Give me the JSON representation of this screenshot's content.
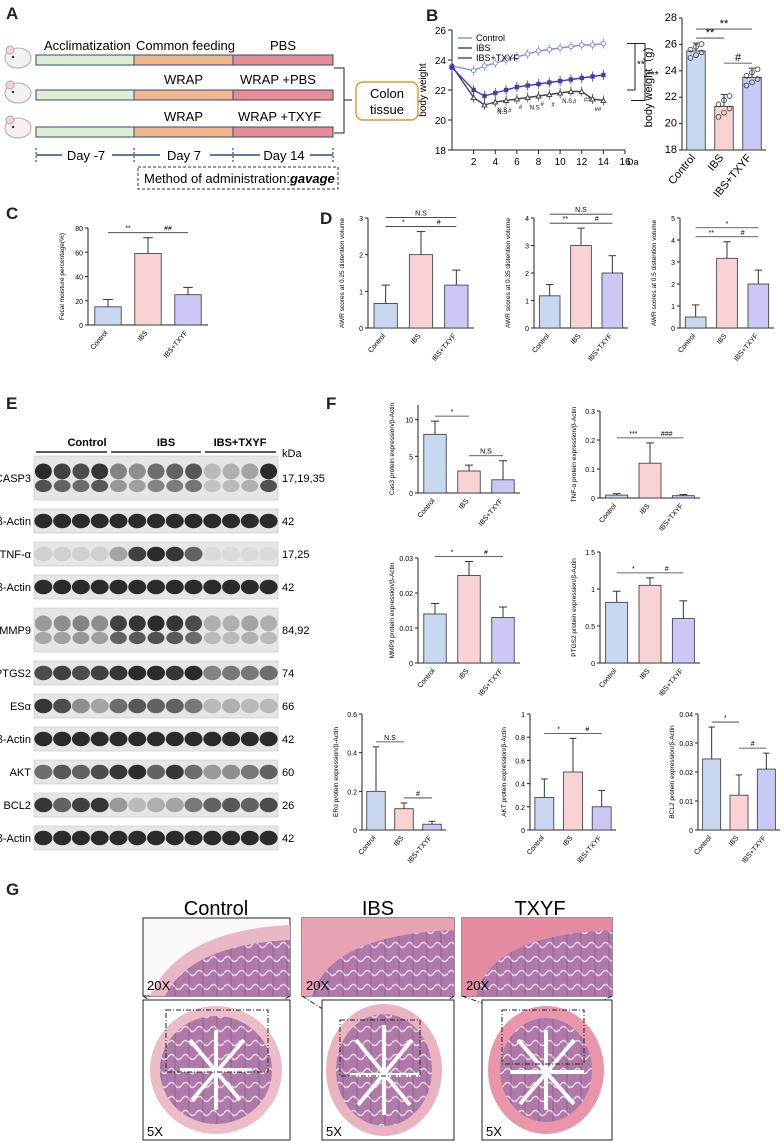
{
  "panels": [
    "A",
    "B",
    "C",
    "D",
    "E",
    "F",
    "G"
  ],
  "panelA": {
    "rows": [
      {
        "s1": "Acclimatization",
        "s2": "Common feeding",
        "s3": "PBS"
      },
      {
        "s1": "",
        "s2": "WRAP",
        "s3": "WRAP +PBS"
      },
      {
        "s1": "",
        "s2": "WRAP",
        "s3": "WRAP +TXYF"
      }
    ],
    "days": [
      "Day -7",
      "Day 7",
      "Day 14"
    ],
    "target": "Colon tissue",
    "method_prefix": "Method of administration:",
    "method_value": "gavage",
    "colors": {
      "s1": "#dfeed1",
      "s2": "#f1b889",
      "s3": "#e98d95",
      "border": "#2d4a8a"
    }
  },
  "chart_data": [
    {
      "id": "B-line",
      "type": "line",
      "ylabel": "body weight",
      "ylim": [
        18,
        26
      ],
      "yticks": [
        18,
        20,
        22,
        24,
        26
      ],
      "xticks": [
        2,
        4,
        6,
        8,
        10,
        12,
        14,
        16
      ],
      "xunit": "Day",
      "legend_position": "top-left",
      "x": [
        0,
        2,
        3,
        4,
        5,
        6,
        7,
        8,
        9,
        10,
        11,
        12,
        13,
        14
      ],
      "series": [
        {
          "name": "Control",
          "values": [
            23.6,
            23.3,
            23.6,
            23.8,
            24.0,
            24.2,
            24.4,
            24.6,
            24.7,
            24.8,
            24.9,
            25.0,
            25.0,
            25.1
          ],
          "color": "#7b93d6"
        },
        {
          "name": "IBS",
          "values": [
            23.6,
            21.5,
            21.0,
            21.2,
            21.3,
            21.4,
            21.5,
            21.6,
            21.7,
            21.8,
            21.9,
            21.9,
            21.4,
            21.3
          ],
          "color": "#444444"
        },
        {
          "name": "IBS+TXYF",
          "values": [
            23.5,
            22.0,
            21.6,
            21.8,
            22.0,
            22.2,
            22.3,
            22.4,
            22.5,
            22.6,
            22.7,
            22.8,
            22.9,
            23.0
          ],
          "color": "#3d3db5"
        }
      ],
      "annotations": [
        "**",
        "***",
        "N.S",
        "N.S",
        "#",
        "#",
        "N.S",
        "#",
        "#",
        "N.S",
        "#",
        "##",
        "##"
      ]
    },
    {
      "id": "B-bar",
      "type": "bar",
      "ylabel": "body weight（g）",
      "ylim": [
        18,
        28
      ],
      "yticks": [
        18,
        20,
        22,
        24,
        26,
        28
      ],
      "categories": [
        "Control",
        "IBS",
        "IBS+TXYF"
      ],
      "values": [
        25.5,
        21.3,
        23.5
      ],
      "errors": [
        0.6,
        0.9,
        0.7
      ],
      "sig": [
        "**",
        "**",
        "#"
      ]
    },
    {
      "id": "C",
      "type": "bar",
      "ylabel": "Fecal moisture percentage(%)",
      "ylim": [
        0,
        80
      ],
      "yticks": [
        0,
        20,
        40,
        60,
        80
      ],
      "categories": [
        "Control",
        "IBS",
        "IBS+TXYF"
      ],
      "values": [
        15,
        59,
        25
      ],
      "errors": [
        6,
        13,
        6
      ],
      "sig": [
        "**",
        "##"
      ]
    },
    {
      "id": "D1",
      "type": "bar",
      "ylabel": "AWR scores at 0.25 distention volume",
      "ylim": [
        0,
        3
      ],
      "yticks": [
        0,
        1,
        2,
        3
      ],
      "categories": [
        "Control",
        "IBS",
        "IBS+TXYF"
      ],
      "values": [
        0.67,
        2.0,
        1.17
      ],
      "errors": [
        0.5,
        0.63,
        0.41
      ],
      "sig": [
        "N.S",
        "*",
        "#"
      ]
    },
    {
      "id": "D2",
      "type": "bar",
      "ylabel": "AWR scores at 0.35 distention volume",
      "ylim": [
        0,
        4
      ],
      "yticks": [
        0,
        1,
        2,
        3,
        4
      ],
      "categories": [
        "Control",
        "IBS",
        "IBS+TXYF"
      ],
      "values": [
        1.17,
        3.0,
        2.0
      ],
      "errors": [
        0.41,
        0.63,
        0.63
      ],
      "sig": [
        "N.S",
        "**",
        "#"
      ]
    },
    {
      "id": "D3",
      "type": "bar",
      "ylabel": "AWR scores at 0.5 distention volume",
      "ylim": [
        0,
        5
      ],
      "yticks": [
        0,
        1,
        2,
        3,
        4,
        5
      ],
      "categories": [
        "Control",
        "IBS",
        "IBS+TXYF"
      ],
      "values": [
        0.5,
        3.17,
        2.0
      ],
      "errors": [
        0.55,
        0.75,
        0.63
      ],
      "sig": [
        "*",
        "**",
        "#"
      ]
    },
    {
      "id": "F1",
      "type": "bar",
      "ylabel": "Cas3 protein expression/β-Actin",
      "ylim": [
        0,
        12
      ],
      "yticks": [
        0,
        5,
        10
      ],
      "categories": [
        "Control",
        "IBS",
        "IBS+TXYF"
      ],
      "values": [
        8,
        3,
        1.8
      ],
      "errors": [
        1.8,
        0.8,
        2.6
      ],
      "sig": [
        "*",
        "N.S"
      ]
    },
    {
      "id": "F2",
      "type": "bar",
      "ylabel": "TNF-α protein expression/β-Actin",
      "ylim": [
        0,
        0.3
      ],
      "yticks": [
        0,
        0.1,
        0.2,
        0.3
      ],
      "categories": [
        "Control",
        "IBS",
        "IBS+TXYF"
      ],
      "values": [
        0.01,
        0.12,
        0.008
      ],
      "errors": [
        0.005,
        0.07,
        0.004
      ],
      "sig": [
        "***",
        "###"
      ]
    },
    {
      "id": "F3",
      "type": "bar",
      "ylabel": "MMP9 protein expression/β-Actin",
      "ylim": [
        0,
        0.03
      ],
      "yticks": [
        0,
        0.01,
        0.02,
        0.03
      ],
      "categories": [
        "Control",
        "IBS",
        "IBS+TXYF"
      ],
      "values": [
        0.014,
        0.025,
        0.013
      ],
      "errors": [
        0.003,
        0.004,
        0.003
      ],
      "sig": [
        "*",
        "#"
      ]
    },
    {
      "id": "F4",
      "type": "bar",
      "ylabel": "PTGS2 protein expression/β-Actin",
      "ylim": [
        0,
        1.5
      ],
      "yticks": [
        0,
        0.5,
        1,
        1.5
      ],
      "categories": [
        "Control",
        "IBS",
        "IBS+TXYF"
      ],
      "values": [
        0.82,
        1.05,
        0.6
      ],
      "errors": [
        0.15,
        0.1,
        0.24
      ],
      "sig": [
        "*",
        "#"
      ]
    },
    {
      "id": "F5",
      "type": "bar",
      "ylabel": "ERα protein expression/β-Actin",
      "ylim": [
        0,
        0.6
      ],
      "yticks": [
        0,
        0.2,
        0.4,
        0.6
      ],
      "categories": [
        "Control",
        "IBS",
        "IBS+TXYF"
      ],
      "values": [
        0.2,
        0.11,
        0.03
      ],
      "errors": [
        0.23,
        0.03,
        0.015
      ],
      "sig": [
        "N.S",
        "#"
      ]
    },
    {
      "id": "F6",
      "type": "bar",
      "ylabel": "AKT protein expression/β-Actin",
      "ylim": [
        0,
        1.0
      ],
      "yticks": [
        0,
        0.2,
        0.4,
        0.6,
        0.8,
        1.0
      ],
      "categories": [
        "Control",
        "IBS",
        "IBS+TXYF"
      ],
      "values": [
        0.28,
        0.5,
        0.2
      ],
      "errors": [
        0.16,
        0.29,
        0.14
      ],
      "sig": [
        "*",
        "#"
      ]
    },
    {
      "id": "F7",
      "type": "bar",
      "ylabel": "BCL2 protein expression/β-Actin",
      "ylim": [
        0,
        0.04
      ],
      "yticks": [
        0,
        0.01,
        0.02,
        0.03,
        0.04
      ],
      "categories": [
        "Control",
        "IBS",
        "IBS+TXYF"
      ],
      "values": [
        0.0245,
        0.012,
        0.021
      ],
      "errors": [
        0.011,
        0.007,
        0.0055
      ],
      "sig": [
        "*",
        "#"
      ]
    }
  ],
  "panelE": {
    "groups": [
      "Control",
      "IBS",
      "IBS+TXYF"
    ],
    "kda_label": "kDa",
    "bands": [
      {
        "name": "CASP3",
        "kda": "17,19,35",
        "intensity": [
          0.85,
          0.75,
          0.7,
          0.8,
          0.45,
          0.4,
          0.55,
          0.6,
          0.65,
          0.2,
          0.25,
          0.3,
          0.85
        ],
        "tall": true
      },
      {
        "name": "β-Actin",
        "kda": "42",
        "intensity": [
          0.85,
          0.85,
          0.85,
          0.85,
          0.85,
          0.85,
          0.85,
          0.85,
          0.85,
          0.85,
          0.85,
          0.85,
          0.85
        ]
      },
      {
        "name": "TNF-α",
        "kda": "17,25",
        "intensity": [
          0.1,
          0.1,
          0.1,
          0.1,
          0.3,
          0.75,
          0.85,
          0.8,
          0.6,
          0.05,
          0.05,
          0.05,
          0.05
        ]
      },
      {
        "name": "β-Actin",
        "kda": "42",
        "intensity": [
          0.85,
          0.85,
          0.85,
          0.85,
          0.85,
          0.85,
          0.85,
          0.85,
          0.85,
          0.85,
          0.85,
          0.85,
          0.85
        ]
      },
      {
        "name": "MMP9",
        "kda": "84,92",
        "intensity": [
          0.35,
          0.4,
          0.45,
          0.4,
          0.75,
          0.8,
          0.85,
          0.8,
          0.7,
          0.25,
          0.25,
          0.3,
          0.25
        ],
        "tall": true
      },
      {
        "name": "PTGS2",
        "kda": "74",
        "intensity": [
          0.7,
          0.75,
          0.7,
          0.75,
          0.8,
          0.85,
          0.85,
          0.8,
          0.85,
          0.45,
          0.5,
          0.5,
          0.55
        ]
      },
      {
        "name": "ESα",
        "kda": "66",
        "intensity": [
          0.8,
          0.7,
          0.4,
          0.3,
          0.55,
          0.65,
          0.6,
          0.6,
          0.5,
          0.2,
          0.25,
          0.2,
          0.2
        ]
      },
      {
        "name": "β-Actin",
        "kda": "42",
        "intensity": [
          0.85,
          0.85,
          0.85,
          0.85,
          0.85,
          0.85,
          0.85,
          0.85,
          0.85,
          0.85,
          0.85,
          0.85,
          0.85
        ]
      },
      {
        "name": "AKT",
        "kda": "60",
        "intensity": [
          0.55,
          0.65,
          0.6,
          0.7,
          0.8,
          0.85,
          0.6,
          0.8,
          0.55,
          0.35,
          0.4,
          0.5,
          0.6
        ]
      },
      {
        "name": "BCL2",
        "kda": "26",
        "intensity": [
          0.8,
          0.6,
          0.75,
          0.8,
          0.35,
          0.2,
          0.25,
          0.3,
          0.5,
          0.6,
          0.65,
          0.6,
          0.7
        ]
      },
      {
        "name": "β-Actin",
        "kda": "42",
        "intensity": [
          0.85,
          0.85,
          0.85,
          0.85,
          0.85,
          0.85,
          0.85,
          0.85,
          0.85,
          0.85,
          0.85,
          0.85,
          0.85
        ]
      }
    ]
  },
  "panelG": {
    "groups": [
      "Control",
      "IBS",
      "TXYF"
    ],
    "zoom_top": "20X",
    "zoom_bottom": "5X"
  },
  "colors": {
    "control": "#c8d8f0",
    "ibs": "#f9d3d3",
    "txyf": "#cbc8f5",
    "stroke": "#333333"
  }
}
